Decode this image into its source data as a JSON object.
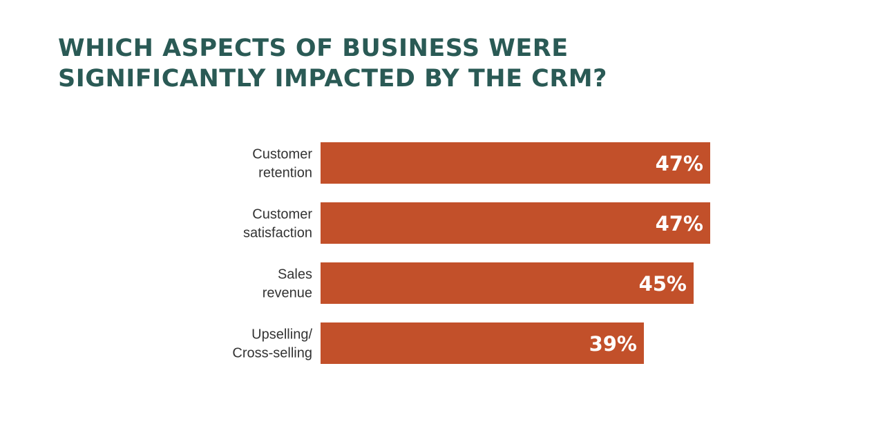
{
  "title": {
    "line1": "WHICH ASPECTS OF BUSINESS WERE",
    "line2": "SIGNIFICANTLY IMPACTED BY THE CRM?"
  },
  "colors": {
    "bar": "#c2502a",
    "title": "#2a5a55",
    "label": "#333333",
    "value_text": "#ffffff",
    "background": "#ffffff"
  },
  "chart_data": {
    "type": "bar",
    "orientation": "horizontal",
    "title": "WHICH ASPECTS OF BUSINESS WERE SIGNIFICANTLY IMPACTED BY THE CRM?",
    "categories": [
      [
        "Customer",
        "retention"
      ],
      [
        "Customer",
        "satisfaction"
      ],
      [
        "Sales",
        "revenue"
      ],
      [
        "Upselling/",
        "Cross-selling"
      ]
    ],
    "values": [
      47,
      47,
      45,
      39
    ],
    "value_labels": [
      "47%",
      "47%",
      "45%",
      "39%"
    ],
    "unit": "%",
    "xlim": [
      0,
      100
    ],
    "grid": false,
    "legend": "none"
  }
}
